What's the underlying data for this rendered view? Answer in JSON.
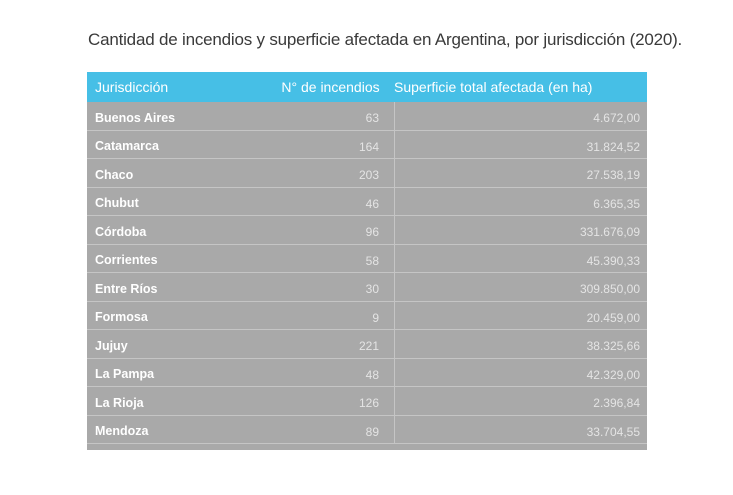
{
  "title": "Cantidad de incendios y superficie afectada en Argentina, por jurisdicción (2020).",
  "colors": {
    "header_bg": "#46bfe6",
    "body_bg": "#a9a9a9",
    "header_text": "#ffffff"
  },
  "chart_data": {
    "type": "table",
    "title": "Cantidad de incendios y superficie afectada en Argentina, por jurisdicción (2020).",
    "columns": [
      "Jurisdicción",
      "N° de incendios",
      "Superficie total afectada (en ha)"
    ],
    "rows": [
      [
        "Buenos Aires",
        "63",
        "4.672,00"
      ],
      [
        "Catamarca",
        "164",
        "31.824,52"
      ],
      [
        "Chaco",
        "203",
        "27.538,19"
      ],
      [
        "Chubut",
        "46",
        "6.365,35"
      ],
      [
        "Córdoba",
        "96",
        "331.676,09"
      ],
      [
        "Corrientes",
        "58",
        "45.390,33"
      ],
      [
        "Entre Ríos",
        "30",
        "309.850,00"
      ],
      [
        "Formosa",
        "9",
        "20.459,00"
      ],
      [
        "Jujuy",
        "221",
        "38.325,66"
      ],
      [
        "La Pampa",
        "48",
        "42.329,00"
      ],
      [
        "La Rioja",
        "126",
        "2.396,84"
      ],
      [
        "Mendoza",
        "89",
        "33.704,55"
      ]
    ]
  }
}
